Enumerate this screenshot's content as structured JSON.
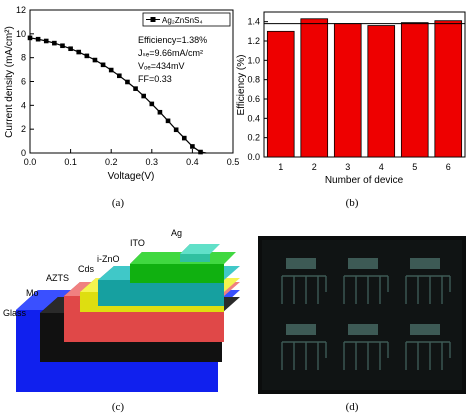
{
  "panels": {
    "a": {
      "caption": "(a)"
    },
    "b": {
      "caption": "(b)"
    },
    "c": {
      "caption": "(c)"
    },
    "d": {
      "caption": "(d)"
    }
  },
  "chart_data": [
    {
      "type": "line",
      "panel": "a",
      "xlabel": "Voltage(V)",
      "ylabel": "Current density (mA/cm²)",
      "xlim": [
        0.0,
        0.5
      ],
      "ylim": [
        0,
        12
      ],
      "xticks": [
        0.0,
        0.1,
        0.2,
        0.3,
        0.4,
        0.5
      ],
      "xtick_labels": [
        "0.0",
        "0.1",
        "0.2",
        "0.3",
        "0.4",
        "0.5"
      ],
      "yticks": [
        0,
        2,
        4,
        6,
        8,
        10,
        12
      ],
      "ytick_labels": [
        "0",
        "2",
        "4",
        "6",
        "8",
        "10",
        "12"
      ],
      "legend": {
        "placement": "top-right",
        "label": "Ag₂ZnSnS₄"
      },
      "annotations": [
        "Efficiency=1.38%",
        "Jₛₑ=9.66mA/cm²",
        "Vₒₑ=434mV",
        "FF=0.33"
      ],
      "series": [
        {
          "name": "Ag₂ZnSnS₄",
          "x": [
            0.0,
            0.02,
            0.04,
            0.06,
            0.08,
            0.1,
            0.12,
            0.14,
            0.16,
            0.18,
            0.2,
            0.22,
            0.24,
            0.26,
            0.28,
            0.3,
            0.32,
            0.34,
            0.36,
            0.38,
            0.4,
            0.42,
            0.434
          ],
          "y": [
            9.66,
            9.55,
            9.4,
            9.22,
            9.0,
            8.75,
            8.47,
            8.15,
            7.8,
            7.4,
            6.96,
            6.48,
            5.96,
            5.4,
            4.78,
            4.12,
            3.42,
            2.7,
            1.95,
            1.25,
            0.55,
            0.08,
            0.0
          ]
        }
      ]
    },
    {
      "type": "bar",
      "panel": "b",
      "xlabel": "Number of device",
      "ylabel": "Efficiency (%)",
      "categories": [
        "1",
        "2",
        "3",
        "4",
        "5",
        "6"
      ],
      "values": [
        1.3,
        1.43,
        1.38,
        1.36,
        1.39,
        1.41
      ],
      "reference_line": 1.38,
      "ylim": [
        0.0,
        1.5
      ],
      "yticks": [
        0.0,
        0.2,
        0.4,
        0.6,
        0.8,
        1.0,
        1.2,
        1.4
      ],
      "ytick_labels": [
        "0.0",
        "0.2",
        "0.4",
        "0.6",
        "0.8",
        "1.0",
        "1.2",
        "1.4"
      ],
      "bar_color": "#ee0000"
    }
  ],
  "device_stack": {
    "layers": [
      {
        "label": "Glass",
        "color": "#1020ee"
      },
      {
        "label": "Mo",
        "color": "#111111"
      },
      {
        "label": "AZTS",
        "color": "#e04848"
      },
      {
        "label": "Cds",
        "color": "#dede10"
      },
      {
        "label": "i-ZnO",
        "color": "#16a0a0"
      },
      {
        "label": "ITO",
        "color": "#10b010"
      },
      {
        "label": "Ag",
        "color": "#30c0a0"
      }
    ]
  },
  "photo": {
    "background": "#0b0d0d",
    "cell_color": "#3d5a55",
    "cell_rows": 2,
    "cell_cols": 3
  }
}
